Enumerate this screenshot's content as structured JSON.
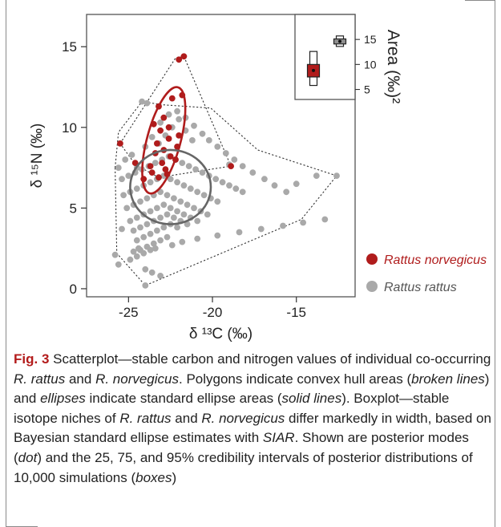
{
  "chart_data": {
    "type": "scatter",
    "xlabel": "δ ¹³C (‰)",
    "ylabel": "δ ¹⁵N (‰)",
    "xlim": [
      -27.5,
      -11.5
    ],
    "ylim": [
      -0.5,
      17
    ],
    "xticks": [
      -25,
      -20,
      -15
    ],
    "yticks": [
      0,
      5,
      10,
      15
    ],
    "legend_position": "bottom-right",
    "series": [
      {
        "name": "Rattus norvegicus",
        "color": "#b01c1c",
        "x": [
          -22.0,
          -21.7,
          -23.2,
          -22.4,
          -21.8,
          -22.9,
          -23.5,
          -22.6,
          -23.1,
          -22.0,
          -22.6,
          -23.3,
          -22.1,
          -22.9,
          -23.4,
          -22.5,
          -22.2,
          -23.0,
          -23.7,
          -22.8,
          -23.6,
          -22.7,
          -23.2,
          -24.1,
          -24.6,
          -25.5,
          -18.9
        ],
        "y": [
          14.2,
          14.4,
          11.3,
          11.8,
          12.0,
          10.6,
          10.2,
          10.0,
          9.8,
          9.5,
          9.3,
          9.0,
          8.8,
          8.6,
          8.4,
          8.2,
          8.0,
          7.8,
          7.6,
          7.4,
          7.2,
          7.1,
          6.9,
          6.8,
          7.8,
          9.0,
          7.6
        ]
      },
      {
        "name": "Rattus rattus",
        "color": "#a9a9a9",
        "x": [
          -25.2,
          -24.8,
          -24.5,
          -24.0,
          -23.6,
          -23.1,
          -22.6,
          -22.1,
          -21.6,
          -21.1,
          -20.6,
          -20.2,
          -19.7,
          -19.2,
          -18.7,
          -18.2,
          -17.6,
          -16.9,
          -16.3,
          -15.6,
          -15.0,
          -13.8,
          -12.6,
          -25.4,
          -25.0,
          -24.6,
          -24.2,
          -23.8,
          -23.4,
          -23.0,
          -22.6,
          -22.2,
          -21.8,
          -21.4,
          -21.0,
          -20.6,
          -20.2,
          -19.8,
          -19.4,
          -19.0,
          -18.6,
          -18.2,
          -25.3,
          -24.9,
          -24.5,
          -24.1,
          -23.7,
          -23.3,
          -22.9,
          -22.5,
          -22.1,
          -21.7,
          -21.3,
          -20.9,
          -20.5,
          -20.1,
          -19.7,
          -25.1,
          -24.7,
          -24.3,
          -23.9,
          -23.5,
          -23.1,
          -22.7,
          -22.3,
          -21.9,
          -21.5,
          -21.1,
          -20.7,
          -20.3,
          -24.9,
          -24.5,
          -24.1,
          -23.7,
          -23.3,
          -22.9,
          -22.5,
          -22.1,
          -21.7,
          -21.3,
          -20.9,
          -24.7,
          -24.3,
          -23.9,
          -23.5,
          -23.1,
          -22.7,
          -22.3,
          -21.9,
          -21.5,
          -24.5,
          -24.1,
          -23.7,
          -23.3,
          -22.9,
          -22.5,
          -22.1,
          -24.3,
          -23.9,
          -23.5,
          -23.1,
          -22.7,
          -24.9,
          -24.5,
          -24.1,
          -23.7,
          -24.0,
          -23.6,
          -23.2,
          -22.8,
          -22.4,
          -22.0,
          -21.6,
          -21.2,
          -24.4,
          -25.6,
          -25.4,
          -24.0,
          -23.1,
          -19.0,
          -13.3,
          -14.6,
          -15.8,
          -17.1,
          -18.4,
          -19.7,
          -20.9,
          -21.8,
          -22.4,
          -23.4,
          -24.7,
          -25.8,
          -25.6,
          -24.2,
          -23.9
        ],
        "y": [
          8.0,
          8.3,
          7.5,
          8.8,
          9.4,
          10.3,
          10.8,
          11.0,
          10.6,
          10.1,
          9.6,
          9.2,
          8.8,
          8.4,
          8.0,
          7.6,
          7.2,
          6.8,
          6.4,
          6.0,
          6.5,
          7.0,
          7.0,
          6.8,
          7.0,
          7.2,
          7.4,
          7.6,
          7.8,
          8.0,
          8.2,
          8.0,
          7.8,
          7.6,
          7.4,
          7.2,
          7.0,
          6.8,
          6.6,
          6.4,
          6.2,
          6.0,
          5.8,
          6.0,
          6.2,
          6.4,
          6.6,
          6.8,
          7.0,
          6.8,
          6.6,
          6.4,
          6.2,
          6.0,
          5.8,
          5.6,
          5.4,
          5.0,
          5.2,
          5.4,
          5.6,
          5.8,
          6.0,
          5.8,
          5.6,
          5.4,
          5.2,
          5.0,
          4.8,
          4.6,
          4.2,
          4.4,
          4.6,
          4.8,
          5.0,
          5.2,
          5.0,
          4.8,
          4.6,
          4.4,
          4.2,
          3.6,
          3.8,
          4.0,
          4.2,
          4.4,
          4.6,
          4.4,
          4.2,
          4.0,
          3.0,
          3.2,
          3.4,
          3.6,
          3.8,
          4.0,
          3.8,
          2.4,
          2.6,
          2.8,
          3.0,
          3.2,
          1.8,
          2.0,
          2.2,
          2.4,
          1.2,
          1.0,
          9.0,
          9.5,
          10.0,
          10.5,
          9.8,
          9.2,
          2.5,
          1.5,
          3.7,
          0.2,
          0.8,
          7.7,
          4.3,
          4.1,
          3.9,
          3.7,
          3.5,
          3.3,
          3.1,
          2.9,
          2.7,
          2.5,
          2.3,
          2.1,
          7.5,
          11.6,
          11.5
        ]
      }
    ],
    "hulls": [
      {
        "name": "Rattus norvegicus",
        "points": [
          [
            -25.5,
            9.0
          ],
          [
            -22.2,
            14.3
          ],
          [
            -21.7,
            14.4
          ],
          [
            -18.9,
            7.6
          ],
          [
            -23.2,
            6.9
          ],
          [
            -24.6,
            7.7
          ]
        ]
      },
      {
        "name": "Rattus rattus",
        "points": [
          [
            -25.8,
            7.5
          ],
          [
            -25.6,
            9.7
          ],
          [
            -24.2,
            11.6
          ],
          [
            -23.0,
            11.4
          ],
          [
            -20.1,
            11.2
          ],
          [
            -17.3,
            8.6
          ],
          [
            -12.6,
            7.0
          ],
          [
            -14.7,
            4.3
          ],
          [
            -24.0,
            0.2
          ],
          [
            -25.7,
            2.2
          ]
        ]
      }
    ],
    "ellipses": [
      {
        "name": "Rattus norvegicus",
        "color": "#b01c1c",
        "cx": -22.9,
        "cy": 9.2,
        "rx": 1.0,
        "ry": 3.4,
        "angle_deg": 15
      },
      {
        "name": "Rattus rattus",
        "color": "#666666",
        "cx": -22.5,
        "cy": 6.3,
        "rx": 2.4,
        "ry": 2.3,
        "angle_deg": 0
      }
    ],
    "inset": {
      "ylabel": "Area (‰)²",
      "yticks": [
        5,
        10,
        15
      ],
      "ylim": [
        3,
        20
      ],
      "boxes": [
        {
          "name": "Rattus norvegicus",
          "mode": 8.8,
          "q25": 7.5,
          "q75": 10.0,
          "q95_low": 5.8,
          "q95_high": 12.6,
          "color": "#b01c1c"
        },
        {
          "name": "Rattus rattus",
          "mode": 14.6,
          "q25": 14.1,
          "q75": 15.1,
          "q95_low": 13.6,
          "q95_high": 15.7,
          "color": "#8f8f8f"
        }
      ]
    }
  },
  "legend": {
    "items": [
      {
        "label": "Rattus norvegicus",
        "color": "#b01c1c"
      },
      {
        "label": "Rattus rattus",
        "color": "#a9a9a9"
      }
    ]
  },
  "caption": {
    "label": "Fig. 3",
    "text_1": "  Scatterplot—stable carbon and nitrogen values of individual co-occurring ",
    "sp_1": "R. rattus",
    "text_2": " and ",
    "sp_2": "R. norvegicus",
    "text_3": ". Polygons indicate convex hull areas (",
    "em_1": "broken lines",
    "text_4": ") and ",
    "em_2": "ellipses",
    "text_5": " indicate standard ellipse areas (",
    "em_3": "solid lines",
    "text_6": "). Boxplot—stable isotope niches of ",
    "sp_3": "R. rattus",
    "text_7": " and ",
    "sp_4": "R. norvegicus",
    "text_8": " differ markedly in width, based on Bayesian standard ellipse estimates with ",
    "em_4": "SIAR",
    "text_9": ". Shown are posterior modes (",
    "em_5": "dot",
    "text_10": ") and the 25, 75, and 95% credibility intervals of posterior distributions of 10,000 simulations (",
    "em_6": "boxes",
    "text_11": ")"
  }
}
